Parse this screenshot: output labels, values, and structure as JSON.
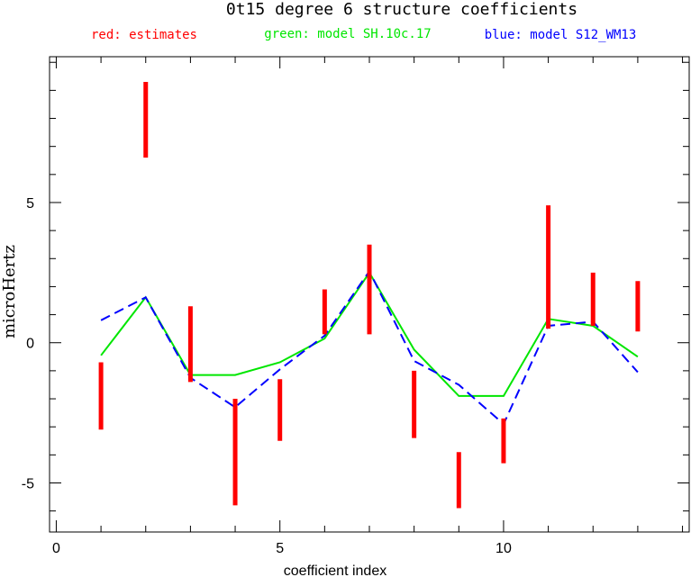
{
  "chart_data": {
    "type": "line",
    "title": "0t15 degree 6 structure coefficients",
    "legend": [
      {
        "label": "red: estimates",
        "color": "#ff0000"
      },
      {
        "label": "green: model SH.10c.17",
        "color": "#00e600"
      },
      {
        "label": "blue: model S12_WM13",
        "color": "#0000ff"
      }
    ],
    "xlabel": "coefficient index",
    "ylabel": "microHertz",
    "xlim": [
      -0.15,
      14.15
    ],
    "ylim": [
      -6.75,
      10.2
    ],
    "x_ticks": [
      0,
      5,
      10
    ],
    "y_ticks": [
      -5,
      0,
      5
    ],
    "x_minor_step": 1,
    "y_minor_step": 1,
    "estimates": {
      "name": "estimates",
      "color": "#ff0000",
      "ranges": [
        {
          "x": 1,
          "low": -3.1,
          "high": -0.7
        },
        {
          "x": 2,
          "low": 6.6,
          "high": 9.3
        },
        {
          "x": 3,
          "low": -1.4,
          "high": 1.3
        },
        {
          "x": 4,
          "low": -5.8,
          "high": -2.0
        },
        {
          "x": 5,
          "low": -3.5,
          "high": -1.3
        },
        {
          "x": 6,
          "low": 0.3,
          "high": 1.9
        },
        {
          "x": 7,
          "low": 0.3,
          "high": 3.5
        },
        {
          "x": 8,
          "low": -3.4,
          "high": -1.0
        },
        {
          "x": 9,
          "low": -5.9,
          "high": -3.9
        },
        {
          "x": 10,
          "low": -4.3,
          "high": -2.7
        },
        {
          "x": 11,
          "low": 0.5,
          "high": 4.9
        },
        {
          "x": 12,
          "low": 0.6,
          "high": 2.5
        },
        {
          "x": 13,
          "low": 0.4,
          "high": 2.2
        }
      ]
    },
    "series": [
      {
        "name": "model SH.10c.17",
        "color": "#00e600",
        "style": "solid",
        "x": [
          1,
          2,
          3,
          4,
          5,
          6,
          7,
          8,
          9,
          10,
          11,
          12,
          13
        ],
        "values": [
          -0.45,
          1.62,
          -1.15,
          -1.15,
          -0.7,
          0.15,
          2.5,
          -0.25,
          -1.9,
          -1.9,
          0.85,
          0.6,
          -0.5
        ]
      },
      {
        "name": "model S12_WM13",
        "color": "#0000ff",
        "style": "dashed",
        "x": [
          1,
          2,
          3,
          4,
          5,
          6,
          7,
          8,
          9,
          10,
          11,
          12,
          13
        ],
        "values": [
          0.8,
          1.62,
          -1.25,
          -2.3,
          -0.95,
          0.25,
          2.55,
          -0.65,
          -1.5,
          -2.9,
          0.6,
          0.75,
          -1.05
        ]
      }
    ]
  }
}
